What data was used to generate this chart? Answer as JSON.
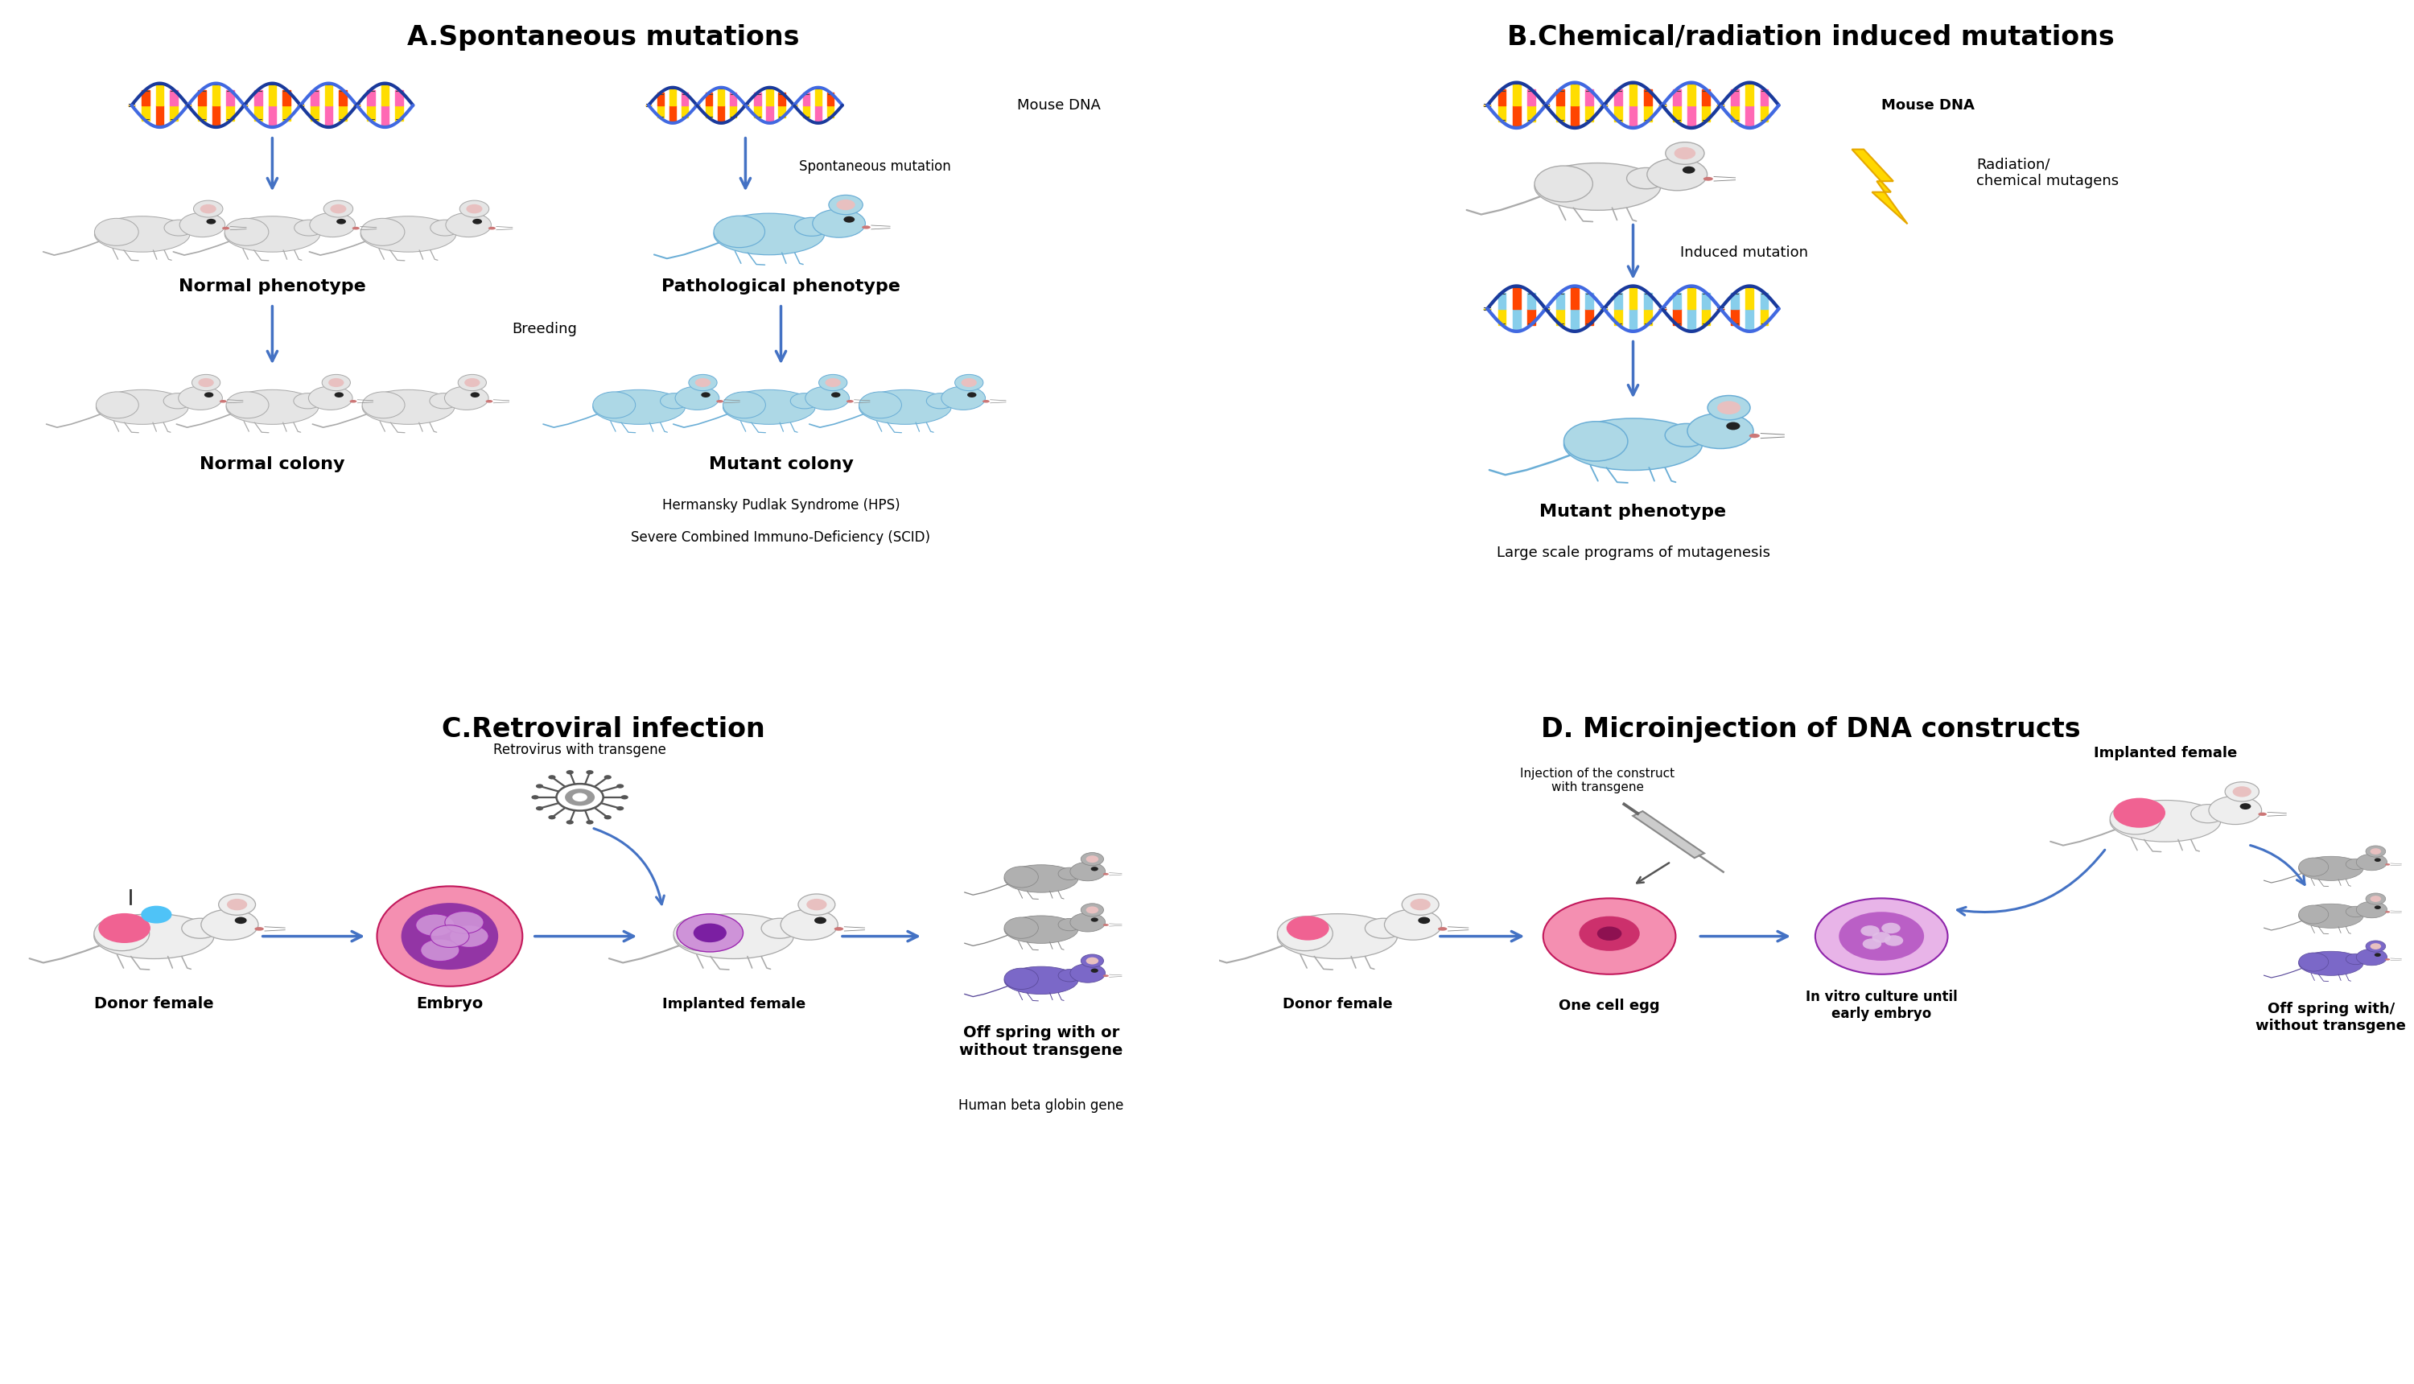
{
  "fig_width": 30.0,
  "fig_height": 17.2,
  "bg_color": "#ffffff",
  "border_color": "#000000",
  "arrow_color": "#4472c4",
  "panel_A": {
    "title": "A.Spontaneous mutations",
    "labels": {
      "mouse_dna": "Mouse DNA",
      "spontaneous_mutation": "Spontaneous mutation",
      "normal_phenotype": "Normal phenotype",
      "pathological_phenotype": "Pathological phenotype",
      "breeding": "Breeding",
      "normal_colony": "Normal colony",
      "mutant_colony": "Mutant colony",
      "hps": "Hermansky Pudlak Syndrome (HPS)",
      "scid": "Severe Combined Immuno-Deficiency (SCID)"
    }
  },
  "panel_B": {
    "title": "B.Chemical/radiation induced mutations",
    "labels": {
      "mouse_dna": "Mouse DNA",
      "radiation": "Radiation/\nchemical mutagens",
      "induced_mutation": "Induced mutation",
      "mutant_phenotype": "Mutant phenotype",
      "large_scale": "Large scale programs of mutagenesis"
    }
  },
  "panel_C": {
    "title": "C.Retroviral infection",
    "labels": {
      "retrovirus": "Retrovirus with transgene",
      "donor_female": "Donor female",
      "embryo": "Embryo",
      "implanted_female": "Implanted female",
      "offspring": "Off spring with or\nwithout transgene",
      "gene": "Human beta globin gene"
    }
  },
  "panel_D": {
    "title": "D. Microinjection of DNA constructs",
    "labels": {
      "injection": "Injection of the construct\nwith transgene",
      "implanted_female": "Implanted female",
      "donor_female": "Donor female",
      "one_cell_egg": "One cell egg",
      "in_vitro": "In vitro culture until\nearly embryo",
      "offspring": "Off spring with/\nwithout transgene"
    }
  },
  "dna_colors_normal": [
    "#ff69b4",
    "#ffdd00",
    "#ff4500",
    "#ffdd00",
    "#ff69b4",
    "#ffdd00",
    "#ff4500",
    "#ffdd00",
    "#ff69b4",
    "#ffdd00"
  ],
  "dna_colors_mutant": [
    "#87ceeb",
    "#ffdd00",
    "#87ceeb",
    "#ff4500",
    "#87ceeb",
    "#ffdd00",
    "#87ceeb",
    "#ff4500",
    "#87ceeb",
    "#ffdd00"
  ],
  "helix_blue": "#1a3a9c",
  "helix_blue2": "#4169e1",
  "mutant_blue": "#add8e6",
  "normal_gray": "#d8d8d8",
  "mouse_outline": "#aaaaaa",
  "purple_mouse": "#9b8ec4",
  "dark_purple": "#7b68c8",
  "arrow_blue": "#4472c4",
  "label_fs": 16,
  "title_fs": 24,
  "small_fs": 13,
  "tiny_fs": 12
}
